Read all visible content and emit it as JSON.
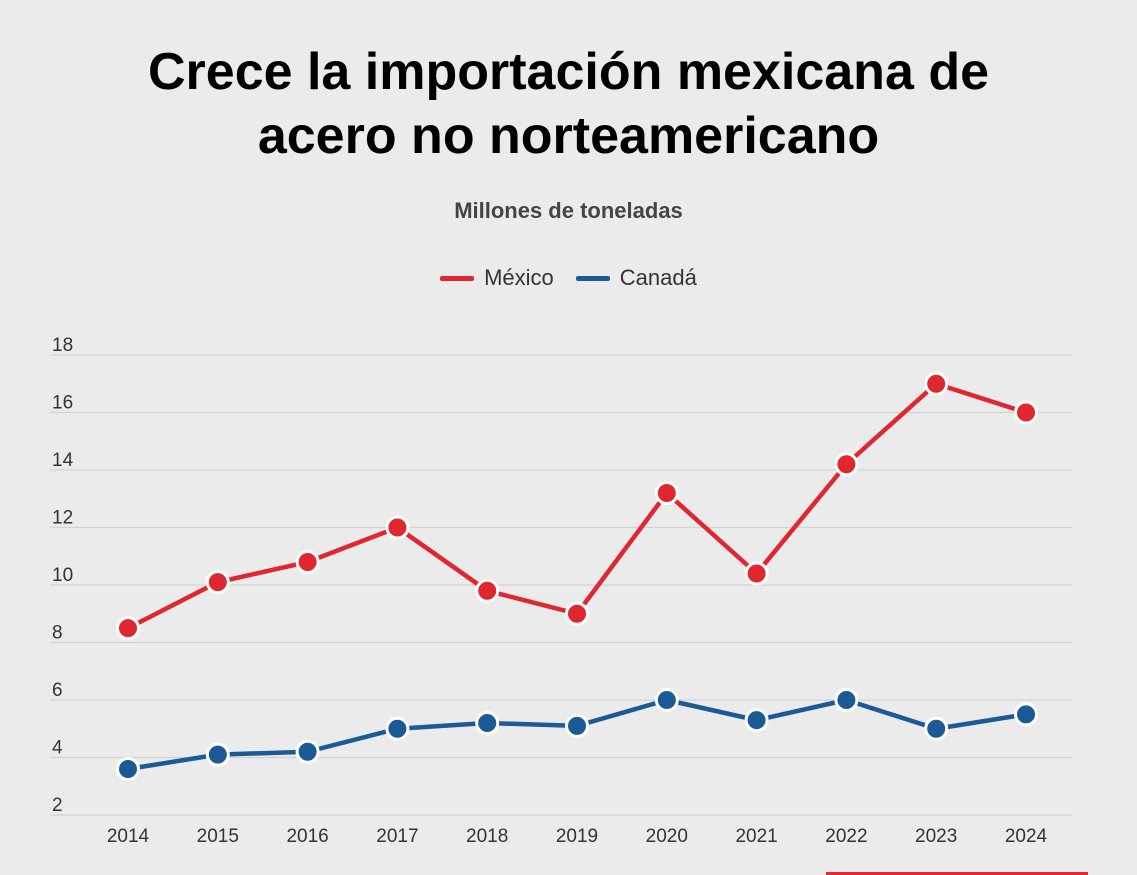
{
  "title_lines": [
    "Crece la importación mexicana de",
    "acero no norteamericano"
  ],
  "subtitle": "Millones de toneladas",
  "legend": [
    {
      "name": "México",
      "color": "#e0262f"
    },
    {
      "name": "Canadá",
      "color": "#1b5a96"
    }
  ],
  "chart_data": {
    "type": "line",
    "title": "Crece la importación mexicana de acero no norteamericano",
    "subtitle": "Millones de toneladas",
    "x": [
      "2014",
      "2015",
      "2016",
      "2017",
      "2018",
      "2019",
      "2020",
      "2021",
      "2022",
      "2023",
      "2024"
    ],
    "series": [
      {
        "name": "México",
        "color": "#e0262f",
        "values": [
          8.5,
          10.1,
          10.8,
          12.0,
          9.8,
          9.0,
          13.2,
          10.4,
          14.2,
          17.0,
          16.0
        ]
      },
      {
        "name": "Canadá",
        "color": "#1b5a96",
        "values": [
          3.6,
          4.1,
          4.2,
          5.0,
          5.2,
          5.1,
          6.0,
          5.3,
          6.0,
          5.0,
          5.5
        ]
      }
    ],
    "yticks": [
      2,
      4,
      6,
      8,
      10,
      12,
      14,
      16,
      18
    ],
    "ylim": [
      2,
      18
    ],
    "grid": true,
    "legend_position": "top-center",
    "xlabel": "",
    "ylabel": ""
  }
}
